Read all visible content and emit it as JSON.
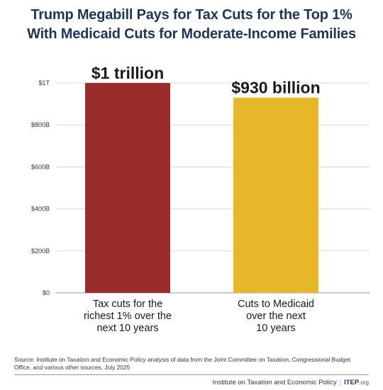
{
  "title": {
    "line1": "Trump Megabill Pays for Tax Cuts for the Top 1%",
    "line2": "With Medicaid Cuts for Moderate-Income Families"
  },
  "chart_data": {
    "type": "bar",
    "categories": [
      [
        "Tax cuts for the",
        "richest 1% over the",
        "next 10 years"
      ],
      [
        "Cuts to Medicaid",
        "over the next",
        "10 years"
      ]
    ],
    "values": [
      1000,
      930
    ],
    "value_labels": [
      "$1 trillion",
      "$930 billion"
    ],
    "colors": [
      "#9b2c2c",
      "#e6b829"
    ],
    "ylim": [
      0,
      1000
    ],
    "y_ticks": [
      0,
      200,
      400,
      600,
      800,
      1000
    ],
    "y_tick_labels": [
      "$0",
      "$200B",
      "$400B",
      "$600B",
      "$800B",
      "$1T"
    ],
    "grid": true,
    "legend": "none"
  },
  "source": "Source: Institute on Taxation and Economic Policy analysis of data from the Joint Committee on Taxation, Congressional Budget Office, and various other sources, July 2025",
  "footer": {
    "org_name": "Institute on Taxation and Economic Policy",
    "separator": "|",
    "brand": "ITEP",
    "brand_suffix": ".org"
  }
}
